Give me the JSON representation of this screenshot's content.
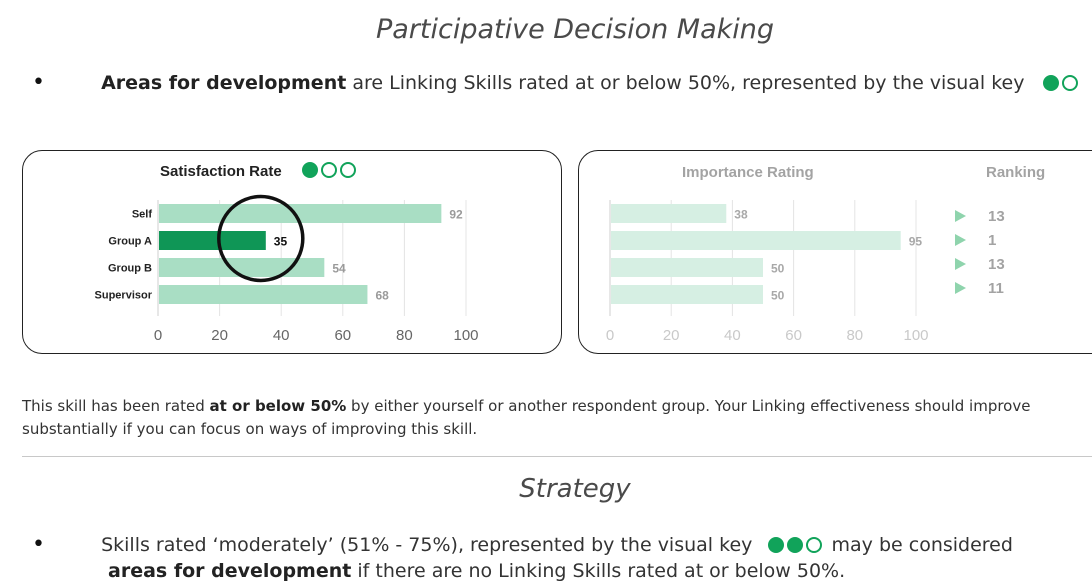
{
  "section1": {
    "title": "Participative Decision Making",
    "bullet_bold": "Areas for development",
    "bullet_rest": " are Linking Skills rated at or below 50%, represented by the visual key"
  },
  "colors": {
    "accent": "#11a35a",
    "bar_light": "#a9dec4",
    "bar_dark": "#0f9656",
    "bar_faded": "#d6efe3",
    "rank_arrow": "#8fd4ad"
  },
  "satisfaction_panel": {
    "title": "Satisfaction Rate",
    "key": [
      "filled",
      "empty",
      "empty"
    ]
  },
  "importance_panel": {
    "title": "Importance Rating",
    "ranking_title": "Ranking",
    "rankings": [
      "13",
      "1",
      "13",
      "11"
    ]
  },
  "chart_data": [
    {
      "type": "bar",
      "title": "Satisfaction Rate",
      "categories": [
        "Self",
        "Group A",
        "Group B",
        "Supervisor"
      ],
      "values": [
        92,
        35,
        54,
        68
      ],
      "highlight": "Group A",
      "xlim": [
        0,
        100
      ],
      "xticks": [
        "0",
        "20",
        "40",
        "60",
        "80",
        "100"
      ]
    },
    {
      "type": "bar",
      "title": "Importance Rating",
      "categories": [
        "Self",
        "Group A",
        "Group B",
        "Supervisor"
      ],
      "values": [
        38,
        95,
        50,
        50
      ],
      "xlim": [
        0,
        100
      ],
      "xticks": [
        "0",
        "20",
        "40",
        "60",
        "80",
        "100"
      ]
    }
  ],
  "description": {
    "text_start": "This skill has been rated ",
    "text_bold": "at or below 50%",
    "text_end": " by either yourself or another respondent group. Your Linking effectiveness should improve substantially if you can focus on ways of improving this skill."
  },
  "section2": {
    "title": "Strategy",
    "bullet_start": "Skills rated ‘moderately’ (51% - 75%), represented by the visual key",
    "bullet_end": " may be considered",
    "line2_bold": "areas for development",
    "line2_rest": " if there are no Linking Skills rated at or below 50%."
  }
}
